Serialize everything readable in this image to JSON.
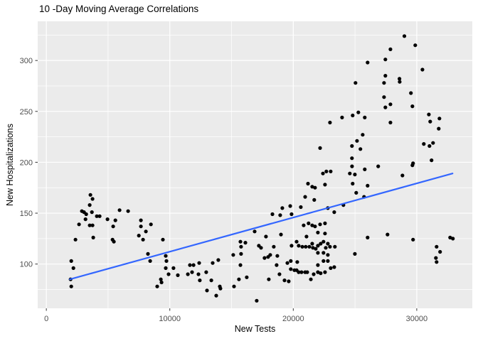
{
  "chart_data": {
    "type": "scatter",
    "title": "10 -Day Moving Average Correlations",
    "xlabel": "New Tests",
    "ylabel": "New Hospitalizations",
    "xlim": [
      -700,
      34500
    ],
    "ylim": [
      56.5,
      338.5
    ],
    "x_major_ticks": [
      0,
      10000,
      20000,
      30000
    ],
    "x_tick_labels": [
      "0",
      "10000",
      "20000",
      "30000"
    ],
    "x_minor_gridlines": [
      5000,
      15000,
      25000
    ],
    "y_major_ticks": [
      100,
      150,
      200,
      250,
      300
    ],
    "y_tick_labels": [
      "100",
      "150",
      "200",
      "250",
      "300"
    ],
    "y_minor_gridlines": [
      75,
      125,
      175,
      225,
      275,
      325
    ],
    "grid": true,
    "legend_position": "none",
    "panel_bg": "#EBEBEB",
    "gridline_color": "#FFFFFF",
    "point_color": "#000000",
    "tick_label_color": "#4D4D4D",
    "tick_mark_color": "#333333",
    "trendline": {
      "type": "linear",
      "color": "#3366FF",
      "x": [
        1900,
        32900
      ],
      "y": [
        85,
        189
      ]
    },
    "points": [
      [
        22170,
        214
      ],
      [
        29000,
        324
      ],
      [
        29880,
        315
      ],
      [
        27870,
        311
      ],
      [
        27460,
        301
      ],
      [
        26020,
        298
      ],
      [
        30460,
        291
      ],
      [
        27460,
        285
      ],
      [
        28600,
        282
      ],
      [
        28620,
        279
      ],
      [
        27350,
        278
      ],
      [
        25040,
        278
      ],
      [
        29530,
        268
      ],
      [
        27350,
        264
      ],
      [
        27870,
        257
      ],
      [
        29650,
        255
      ],
      [
        27460,
        254
      ],
      [
        25270,
        249
      ],
      [
        24810,
        246
      ],
      [
        23950,
        244
      ],
      [
        25790,
        244
      ],
      [
        22970,
        239
      ],
      [
        27870,
        239
      ],
      [
        30980,
        247
      ],
      [
        31090,
        240
      ],
      [
        31840,
        243
      ],
      [
        31780,
        233
      ],
      [
        25620,
        227
      ],
      [
        25160,
        221
      ],
      [
        24750,
        216
      ],
      [
        25440,
        213
      ],
      [
        30570,
        218
      ],
      [
        31030,
        216
      ],
      [
        31320,
        219
      ],
      [
        24750,
        204
      ],
      [
        31200,
        202
      ],
      [
        29700,
        199
      ],
      [
        3570,
        168
      ],
      [
        3740,
        164
      ],
      [
        3510,
        158
      ],
      [
        2880,
        152
      ],
      [
        3050,
        151
      ],
      [
        3230,
        149
      ],
      [
        3690,
        151
      ],
      [
        4090,
        147
      ],
      [
        4320,
        147
      ],
      [
        3170,
        144
      ],
      [
        5930,
        153
      ],
      [
        6620,
        152
      ],
      [
        4950,
        144
      ],
      [
        5590,
        143
      ],
      [
        2650,
        139
      ],
      [
        3510,
        138
      ],
      [
        3740,
        138
      ],
      [
        5410,
        137
      ],
      [
        7660,
        143
      ],
      [
        7660,
        137
      ],
      [
        8470,
        139
      ],
      [
        8060,
        132
      ],
      [
        7490,
        128
      ],
      [
        7830,
        124
      ],
      [
        2360,
        124
      ],
      [
        3800,
        126
      ],
      [
        5360,
        124
      ],
      [
        5470,
        122
      ],
      [
        9440,
        124
      ],
      [
        2020,
        103
      ],
      [
        2190,
        96
      ],
      [
        8230,
        110
      ],
      [
        8410,
        103
      ],
      [
        9670,
        108
      ],
      [
        9730,
        103
      ],
      [
        9670,
        96
      ],
      [
        10300,
        96
      ],
      [
        9900,
        90
      ],
      [
        10650,
        89
      ],
      [
        9270,
        85
      ],
      [
        9330,
        82
      ],
      [
        1960,
        85
      ],
      [
        2020,
        78
      ],
      [
        8980,
        78
      ],
      [
        22400,
        189
      ],
      [
        22680,
        191
      ],
      [
        21190,
        179
      ],
      [
        21530,
        176
      ],
      [
        21760,
        175
      ],
      [
        22570,
        178
      ],
      [
        20960,
        166
      ],
      [
        21700,
        163
      ],
      [
        19110,
        155
      ],
      [
        19750,
        157
      ],
      [
        20610,
        156
      ],
      [
        18310,
        149
      ],
      [
        18940,
        148
      ],
      [
        19860,
        149
      ],
      [
        16870,
        132
      ],
      [
        17790,
        127
      ],
      [
        19000,
        129
      ],
      [
        15720,
        122
      ],
      [
        16120,
        121
      ],
      [
        17210,
        118
      ],
      [
        17390,
        116
      ],
      [
        17670,
        106
      ],
      [
        18420,
        117
      ],
      [
        18710,
        108
      ],
      [
        15770,
        117
      ],
      [
        15140,
        109
      ],
      [
        15770,
        110
      ],
      [
        18130,
        109
      ],
      [
        17960,
        107
      ],
      [
        13930,
        104
      ],
      [
        15720,
        99
      ],
      [
        13470,
        101
      ],
      [
        12380,
        101
      ],
      [
        11630,
        99
      ],
      [
        11920,
        99
      ],
      [
        12950,
        92
      ],
      [
        12320,
        90
      ],
      [
        11800,
        92
      ],
      [
        11460,
        90
      ],
      [
        12430,
        84
      ],
      [
        13360,
        84
      ],
      [
        14050,
        78
      ],
      [
        14100,
        76
      ],
      [
        13010,
        74
      ],
      [
        13760,
        69
      ],
      [
        17040,
        64
      ],
      [
        15200,
        78
      ],
      [
        15600,
        85
      ],
      [
        16230,
        87
      ],
      [
        18020,
        85
      ],
      [
        18880,
        90
      ],
      [
        18650,
        99
      ],
      [
        19520,
        101
      ],
      [
        19290,
        84
      ],
      [
        19630,
        83
      ],
      [
        19800,
        103
      ],
      [
        20320,
        102
      ],
      [
        19800,
        95
      ],
      [
        20090,
        94
      ],
      [
        20270,
        94
      ],
      [
        20440,
        92
      ],
      [
        20670,
        92
      ],
      [
        20960,
        92
      ],
      [
        21130,
        92
      ],
      [
        21420,
        85
      ],
      [
        21650,
        90
      ],
      [
        21990,
        92
      ],
      [
        22220,
        91
      ],
      [
        22570,
        92
      ],
      [
        22450,
        103
      ],
      [
        21990,
        99
      ],
      [
        21990,
        111
      ],
      [
        22450,
        111
      ],
      [
        22630,
        116
      ],
      [
        21530,
        120
      ],
      [
        22450,
        122
      ],
      [
        21070,
        127
      ],
      [
        21240,
        140
      ],
      [
        20840,
        138
      ],
      [
        21530,
        138
      ],
      [
        21760,
        137
      ],
      [
        21990,
        131
      ],
      [
        22170,
        139
      ],
      [
        22570,
        140
      ],
      [
        22570,
        130
      ],
      [
        20270,
        122
      ],
      [
        19860,
        118
      ],
      [
        20440,
        118
      ],
      [
        20730,
        117
      ],
      [
        21010,
        117
      ],
      [
        21300,
        117
      ],
      [
        21590,
        116
      ],
      [
        21820,
        115
      ],
      [
        21990,
        118
      ],
      [
        22220,
        120
      ],
      [
        23030,
        191
      ],
      [
        24760,
        196
      ],
      [
        24580,
        189
      ],
      [
        24990,
        188
      ],
      [
        25790,
        193
      ],
      [
        26880,
        196
      ],
      [
        29650,
        197
      ],
      [
        28840,
        187
      ],
      [
        24810,
        179
      ],
      [
        26020,
        177
      ],
      [
        25100,
        170
      ],
      [
        25730,
        166
      ],
      [
        24060,
        158
      ],
      [
        23320,
        151
      ],
      [
        22800,
        155
      ],
      [
        27630,
        129
      ],
      [
        26020,
        126
      ],
      [
        29700,
        124
      ],
      [
        32700,
        126
      ],
      [
        32930,
        125
      ],
      [
        31610,
        117
      ],
      [
        31890,
        112
      ],
      [
        22800,
        120
      ],
      [
        22970,
        117
      ],
      [
        23370,
        117
      ],
      [
        22800,
        109
      ],
      [
        24990,
        110
      ],
      [
        22800,
        103
      ],
      [
        31550,
        106
      ],
      [
        31610,
        102
      ],
      [
        23030,
        96
      ],
      [
        23320,
        97
      ]
    ]
  }
}
